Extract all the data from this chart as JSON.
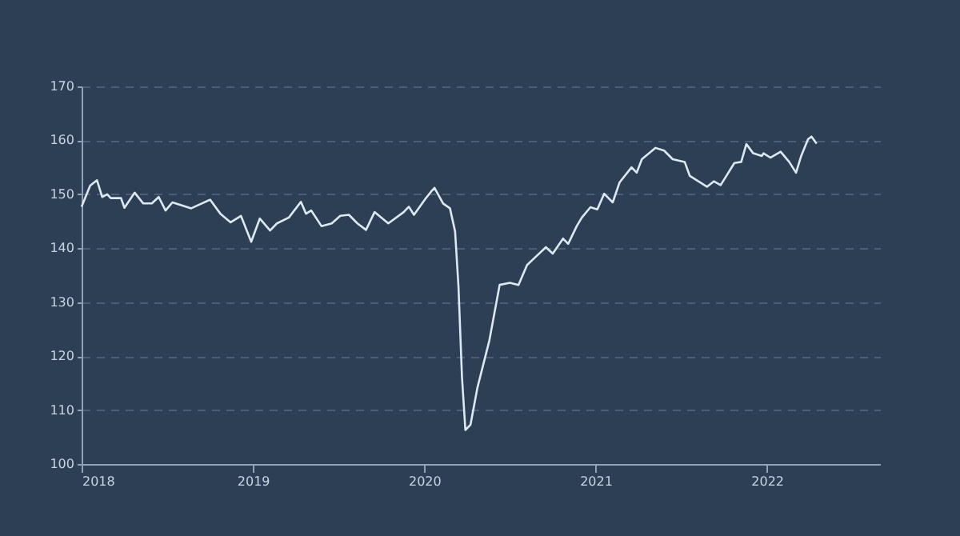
{
  "chart_data": {
    "type": "line",
    "xlim": [
      2018,
      2022.66
    ],
    "xticks": [
      2018,
      2019,
      2020,
      2021,
      2022
    ],
    "ylim": [
      100,
      170
    ],
    "yticks": [
      100,
      110,
      120,
      130,
      140,
      150,
      160,
      170
    ],
    "grid": "y",
    "series": [
      {
        "color": "#dce8f2",
        "x": [
          2018.0,
          2018.05,
          2018.09,
          2018.12,
          2018.15,
          2018.17,
          2018.23,
          2018.25,
          2018.31,
          2018.36,
          2018.41,
          2018.45,
          2018.49,
          2018.53,
          2018.64,
          2018.75,
          2018.81,
          2018.87,
          2018.93,
          2018.99,
          2019.04,
          2019.1,
          2019.14,
          2019.21,
          2019.28,
          2019.31,
          2019.34,
          2019.4,
          2019.46,
          2019.51,
          2019.56,
          2019.61,
          2019.66,
          2019.71,
          2019.79,
          2019.88,
          2019.91,
          2019.94,
          2020.01,
          2020.04,
          2020.06,
          2020.11,
          2020.15,
          2020.18,
          2020.2,
          2020.22,
          2020.24,
          2020.27,
          2020.31,
          2020.38,
          2020.44,
          2020.5,
          2020.55,
          2020.6,
          2020.65,
          2020.71,
          2020.75,
          2020.81,
          2020.84,
          2020.89,
          2020.92,
          2020.97,
          2021.01,
          2021.05,
          2021.1,
          2021.14,
          2021.21,
          2021.24,
          2021.27,
          2021.35,
          2021.4,
          2021.45,
          2021.52,
          2021.55,
          2021.6,
          2021.65,
          2021.69,
          2021.73,
          2021.81,
          2021.85,
          2021.88,
          2021.92,
          2021.97,
          2021.98,
          2022.02,
          2022.08,
          2022.13,
          2022.17,
          2022.2,
          2022.24,
          2022.26,
          2022.29
        ],
        "values": [
          147.7,
          151.6,
          152.6,
          149.5,
          150,
          149.3,
          149.3,
          147.5,
          150.3,
          148.3,
          148.3,
          149.5,
          147,
          148.5,
          147.4,
          149,
          146.4,
          144.8,
          146,
          141.2,
          145.5,
          143.3,
          144.6,
          145.7,
          148.6,
          146.4,
          147,
          144.1,
          144.6,
          146,
          146.2,
          144.6,
          143.4,
          146.7,
          144.6,
          146.7,
          147.7,
          146.2,
          149.3,
          150.5,
          151.2,
          148.3,
          147.4,
          143.1,
          132.7,
          116.2,
          106.3,
          107.3,
          114.1,
          122.9,
          133.2,
          133.6,
          133.2,
          136.9,
          138.4,
          140.2,
          139,
          141.8,
          140.8,
          144.1,
          145.7,
          147.6,
          147.2,
          150.1,
          148.5,
          152.2,
          155,
          154,
          156.5,
          158.6,
          158.1,
          156.5,
          156,
          153.4,
          152.4,
          151.4,
          152.4,
          151.7,
          155.8,
          156,
          159.3,
          157.6,
          157.1,
          157.6,
          156.8,
          157.9,
          156,
          154,
          157.1,
          160.2,
          160.7,
          159.4
        ]
      }
    ]
  }
}
